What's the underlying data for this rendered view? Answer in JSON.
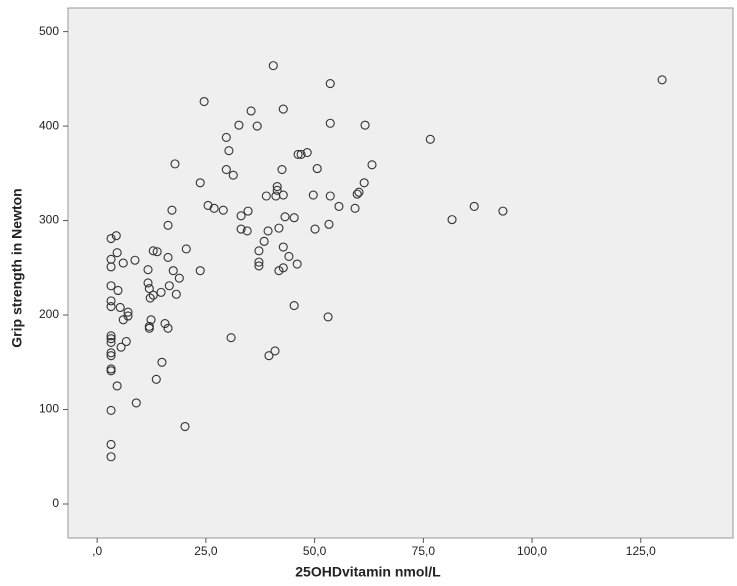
{
  "chart_data": {
    "type": "scatter",
    "x_label": "25OHDvitamin nmol/L",
    "y_label": "Grip strength in Newton",
    "marker_color": "#333333",
    "xlim": [
      -6.7,
      146.2
    ],
    "ylim": [
      -36,
      525
    ],
    "xticks": [
      {
        "value": 0,
        "label": ",0"
      },
      {
        "value": 25,
        "label": "25,0"
      },
      {
        "value": 50,
        "label": "50,0"
      },
      {
        "value": 75,
        "label": "75,0"
      },
      {
        "value": 100,
        "label": "100,0"
      },
      {
        "value": 125,
        "label": "125,0"
      }
    ],
    "yticks": [
      0,
      100,
      200,
      300,
      400,
      500
    ],
    "x": [
      3.2,
      3.2,
      3.2,
      3.2,
      3.2,
      3.2,
      3.2,
      3.2,
      3.2,
      3.2,
      3.2,
      3.2,
      3.2,
      3.2,
      3.2,
      3.2,
      4.4,
      4.6,
      4.8,
      5.3,
      5.5,
      4.6,
      6.0,
      6.0,
      6.7,
      7.1,
      7.1,
      8.7,
      9.0,
      11.7,
      11.7,
      12.0,
      12.2,
      12.0,
      12.0,
      12.4,
      12.9,
      12.9,
      13.8,
      13.6,
      14.7,
      14.9,
      15.6,
      16.3,
      16.3,
      16.3,
      16.6,
      17.2,
      17.5,
      17.9,
      18.9,
      18.2,
      20.5,
      20.2,
      23.7,
      23.7,
      24.6,
      25.5,
      26.9,
      29.0,
      29.7,
      29.7,
      30.3,
      30.8,
      31.3,
      32.6,
      33.1,
      33.1,
      34.7,
      34.5,
      35.4,
      36.8,
      37.2,
      37.2,
      37.2,
      38.4,
      38.9,
      39.3,
      39.5,
      40.9,
      40.5,
      41.1,
      41.4,
      41.4,
      41.8,
      41.8,
      42.5,
      42.8,
      42.8,
      43.2,
      42.8,
      42.8,
      44.1,
      45.3,
      45.3,
      46.0,
      46.2,
      46.9,
      48.3,
      49.7,
      50.6,
      50.1,
      53.6,
      53.6,
      53.1,
      53.6,
      53.3,
      55.6,
      59.3,
      59.8,
      60.2,
      61.4,
      61.6,
      63.2,
      76.6,
      81.6,
      86.7,
      93.3,
      129.9
    ],
    "values": [
      281,
      259,
      251,
      231,
      215,
      209,
      178,
      175,
      171,
      160,
      157,
      143,
      141,
      99,
      63,
      50,
      284,
      266,
      226,
      208,
      166,
      125,
      255,
      195,
      172,
      203,
      199,
      258,
      107,
      248,
      234,
      228,
      218,
      188,
      186,
      195,
      268,
      221,
      267,
      132,
      224,
      150,
      191,
      186,
      261,
      295,
      231,
      311,
      247,
      360,
      239,
      222,
      270,
      82,
      340,
      247,
      426,
      316,
      313,
      311,
      388,
      354,
      374,
      176,
      348,
      401,
      305,
      291,
      310,
      289,
      416,
      400,
      268,
      256,
      252,
      278,
      326,
      289,
      157,
      162,
      464,
      326,
      332,
      336,
      292,
      247,
      354,
      418,
      327,
      304,
      272,
      250,
      262,
      303,
      210,
      254,
      370,
      370,
      372,
      327,
      355,
      291,
      445,
      403,
      198,
      326,
      296,
      315,
      313,
      328,
      330,
      340,
      401,
      359,
      386,
      301,
      315,
      310,
      449
    ]
  }
}
